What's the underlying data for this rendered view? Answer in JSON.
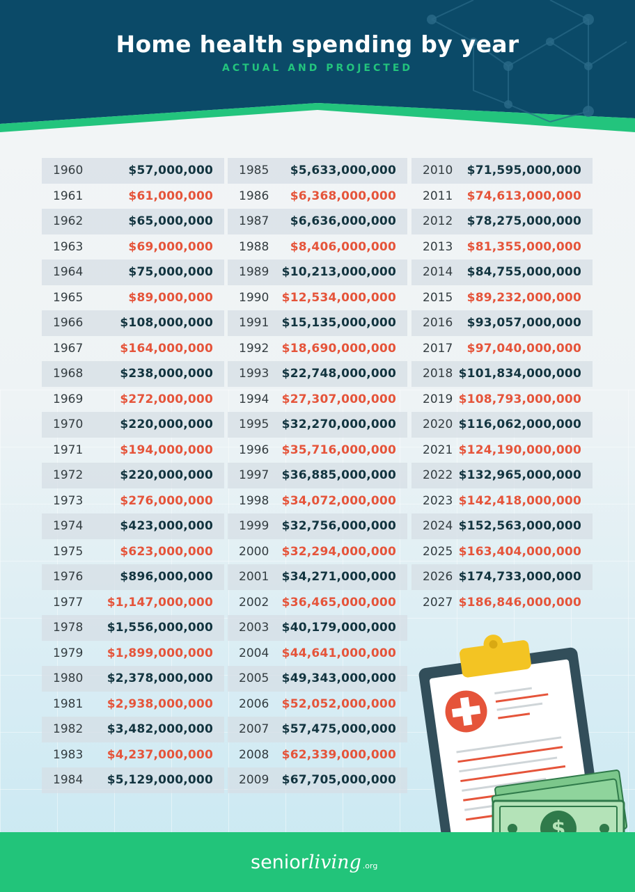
{
  "header": {
    "title": "Home health spending by year",
    "subtitle": "ACTUAL AND PROJECTED"
  },
  "colors": {
    "header_bg": "#0b4a68",
    "accent_green": "#22c47a",
    "value_dark": "#12343f",
    "value_red": "#e5543a"
  },
  "table": {
    "columns": [
      [
        {
          "year": "1960",
          "amount": "$57,000,000"
        },
        {
          "year": "1961",
          "amount": "$61,000,000"
        },
        {
          "year": "1962",
          "amount": "$65,000,000"
        },
        {
          "year": "1963",
          "amount": "$69,000,000"
        },
        {
          "year": "1964",
          "amount": "$75,000,000"
        },
        {
          "year": "1965",
          "amount": "$89,000,000"
        },
        {
          "year": "1966",
          "amount": "$108,000,000"
        },
        {
          "year": "1967",
          "amount": "$164,000,000"
        },
        {
          "year": "1968",
          "amount": "$238,000,000"
        },
        {
          "year": "1969",
          "amount": "$272,000,000"
        },
        {
          "year": "1970",
          "amount": "$220,000,000"
        },
        {
          "year": "1971",
          "amount": "$194,000,000"
        },
        {
          "year": "1972",
          "amount": "$220,000,000"
        },
        {
          "year": "1973",
          "amount": "$276,000,000"
        },
        {
          "year": "1974",
          "amount": "$423,000,000"
        },
        {
          "year": "1975",
          "amount": "$623,000,000"
        },
        {
          "year": "1976",
          "amount": "$896,000,000"
        },
        {
          "year": "1977",
          "amount": "$1,147,000,000"
        },
        {
          "year": "1978",
          "amount": "$1,556,000,000"
        },
        {
          "year": "1979",
          "amount": "$1,899,000,000"
        },
        {
          "year": "1980",
          "amount": "$2,378,000,000"
        },
        {
          "year": "1981",
          "amount": "$2,938,000,000"
        },
        {
          "year": "1982",
          "amount": "$3,482,000,000"
        },
        {
          "year": "1983",
          "amount": "$4,237,000,000"
        },
        {
          "year": "1984",
          "amount": "$5,129,000,000"
        }
      ],
      [
        {
          "year": "1985",
          "amount": "$5,633,000,000"
        },
        {
          "year": "1986",
          "amount": "$6,368,000,000"
        },
        {
          "year": "1987",
          "amount": "$6,636,000,000"
        },
        {
          "year": "1988",
          "amount": "$8,406,000,000"
        },
        {
          "year": "1989",
          "amount": "$10,213,000,000"
        },
        {
          "year": "1990",
          "amount": "$12,534,000,000"
        },
        {
          "year": "1991",
          "amount": "$15,135,000,000"
        },
        {
          "year": "1992",
          "amount": "$18,690,000,000"
        },
        {
          "year": "1993",
          "amount": "$22,748,000,000"
        },
        {
          "year": "1994",
          "amount": "$27,307,000,000"
        },
        {
          "year": "1995",
          "amount": "$32,270,000,000"
        },
        {
          "year": "1996",
          "amount": "$35,716,000,000"
        },
        {
          "year": "1997",
          "amount": "$36,885,000,000"
        },
        {
          "year": "1998",
          "amount": "$34,072,000,000"
        },
        {
          "year": "1999",
          "amount": "$32,756,000,000"
        },
        {
          "year": "2000",
          "amount": "$32,294,000,000"
        },
        {
          "year": "2001",
          "amount": "$34,271,000,000"
        },
        {
          "year": "2002",
          "amount": "$36,465,000,000"
        },
        {
          "year": "2003",
          "amount": "$40,179,000,000"
        },
        {
          "year": "2004",
          "amount": "$44,641,000,000"
        },
        {
          "year": "2005",
          "amount": "$49,343,000,000"
        },
        {
          "year": "2006",
          "amount": "$52,052,000,000"
        },
        {
          "year": "2007",
          "amount": "$57,475,000,000"
        },
        {
          "year": "2008",
          "amount": "$62,339,000,000"
        },
        {
          "year": "2009",
          "amount": "$67,705,000,000"
        }
      ],
      [
        {
          "year": "2010",
          "amount": "$71,595,000,000"
        },
        {
          "year": "2011",
          "amount": "$74,613,000,000"
        },
        {
          "year": "2012",
          "amount": "$78,275,000,000"
        },
        {
          "year": "2013",
          "amount": "$81,355,000,000"
        },
        {
          "year": "2014",
          "amount": "$84,755,000,000"
        },
        {
          "year": "2015",
          "amount": "$89,232,000,000"
        },
        {
          "year": "2016",
          "amount": "$93,057,000,000"
        },
        {
          "year": "2017",
          "amount": "$97,040,000,000"
        },
        {
          "year": "2018",
          "amount": "$101,834,000,000"
        },
        {
          "year": "2019",
          "amount": "$108,793,000,000"
        },
        {
          "year": "2020",
          "amount": "$116,062,000,000"
        },
        {
          "year": "2021",
          "amount": "$124,190,000,000"
        },
        {
          "year": "2022",
          "amount": "$132,965,000,000"
        },
        {
          "year": "2023",
          "amount": "$142,418,000,000"
        },
        {
          "year": "2024",
          "amount": "$152,563,000,000"
        },
        {
          "year": "2025",
          "amount": "$163,404,000,000"
        },
        {
          "year": "2026",
          "amount": "$174,733,000,000"
        },
        {
          "year": "2027",
          "amount": "$186,846,000,000"
        }
      ]
    ]
  },
  "illustration": {
    "clipboard_icon": "medical-clipboard-icon",
    "money_icon": "dollar-bills-icon",
    "coins_icon": "gold-coins-icon",
    "money_symbol": "$"
  },
  "footer": {
    "logo_part1": "senior",
    "logo_part2": "living",
    "logo_suffix": ".org"
  }
}
